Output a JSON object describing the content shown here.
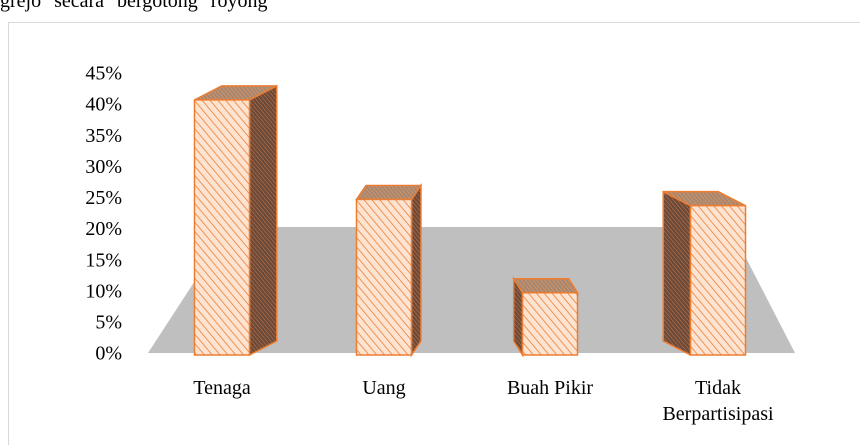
{
  "caption": "grejo secara bergotong royong",
  "chart_data": {
    "type": "bar3d",
    "categories": [
      "Tenaga",
      "Uang",
      "Buah Pikir",
      "Tidak Berpartisipasi"
    ],
    "values": [
      41,
      25,
      10,
      24
    ],
    "color": "#ed7d31",
    "ylim": [
      0,
      45
    ],
    "yticks": [
      {
        "value": 0,
        "label": "0%"
      },
      {
        "value": 5,
        "label": "5%"
      },
      {
        "value": 10,
        "label": "10%"
      },
      {
        "value": 15,
        "label": "15%"
      },
      {
        "value": 20,
        "label": "20%"
      },
      {
        "value": 25,
        "label": "25%"
      },
      {
        "value": 30,
        "label": "30%"
      },
      {
        "value": 35,
        "label": "35%"
      },
      {
        "value": 40,
        "label": "40%"
      },
      {
        "value": 45,
        "label": "45%"
      }
    ]
  }
}
